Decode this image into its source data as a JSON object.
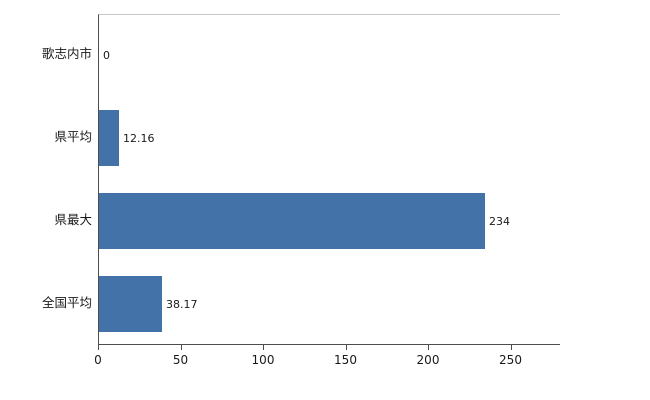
{
  "chart_data": {
    "type": "bar",
    "orientation": "horizontal",
    "title": "",
    "xlabel": "",
    "ylabel": "",
    "categories": [
      "歌志内市",
      "県平均",
      "県最大",
      "全国平均"
    ],
    "values": [
      0,
      12.16,
      234,
      38.17
    ],
    "value_labels": [
      "0",
      "12.16",
      "234",
      "38.17"
    ],
    "x_ticks": [
      0,
      50,
      100,
      150,
      200,
      250
    ],
    "xlim": [
      0,
      280
    ],
    "grid": false,
    "legend": "none",
    "bar_color": "#4272A7"
  }
}
